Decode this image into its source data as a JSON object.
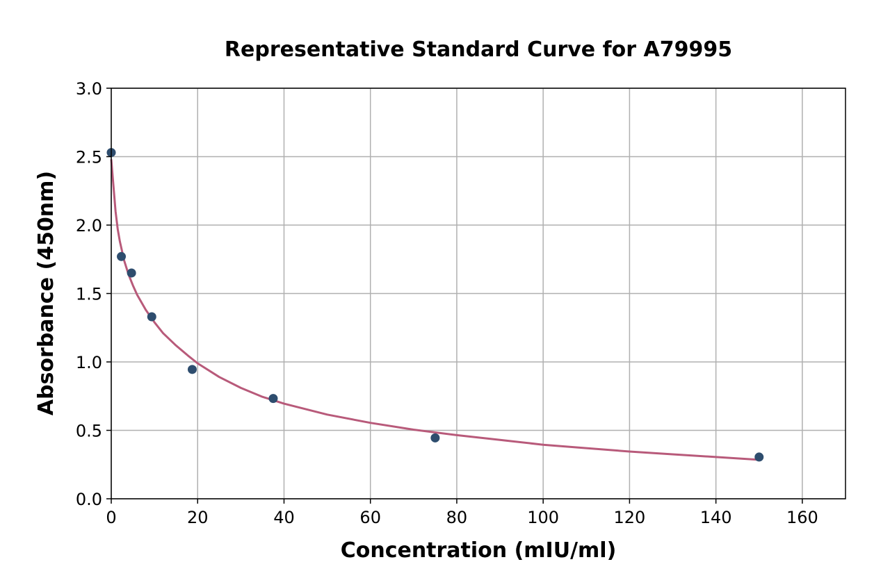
{
  "chart_data": {
    "type": "scatter",
    "title": "Representative Standard Curve for A79995",
    "xlabel": "Concentration (mIU/ml)",
    "ylabel": "Absorbance (450nm)",
    "xlim": [
      0,
      170
    ],
    "ylim": [
      0,
      3.0
    ],
    "x_ticks": [
      0,
      20,
      40,
      60,
      80,
      100,
      120,
      140,
      160
    ],
    "y_ticks": [
      0.0,
      0.5,
      1.0,
      1.5,
      2.0,
      2.5,
      3.0
    ],
    "x_tick_labels": [
      "0",
      "20",
      "40",
      "60",
      "80",
      "100",
      "120",
      "140",
      "160"
    ],
    "y_tick_labels": [
      "0.0",
      "0.5",
      "1.0",
      "1.5",
      "2.0",
      "2.5",
      "3.0"
    ],
    "grid": true,
    "points": {
      "x": [
        0,
        2.34,
        4.69,
        9.38,
        18.75,
        37.5,
        75,
        150
      ],
      "y": [
        2.53,
        1.77,
        1.65,
        1.33,
        0.945,
        0.733,
        0.445,
        0.305
      ],
      "color": "#2e4d6e"
    },
    "fit_curve": {
      "x": [
        0,
        1,
        1.5,
        2,
        3,
        4,
        5,
        6,
        8,
        10,
        12,
        15,
        18,
        20,
        25,
        30,
        35,
        40,
        50,
        60,
        70,
        80,
        90,
        100,
        110,
        120,
        130,
        140,
        150
      ],
      "y": [
        2.48,
        2.1,
        1.97,
        1.88,
        1.74,
        1.64,
        1.56,
        1.49,
        1.38,
        1.29,
        1.21,
        1.12,
        1.04,
        0.99,
        0.89,
        0.81,
        0.745,
        0.695,
        0.615,
        0.555,
        0.505,
        0.465,
        0.43,
        0.395,
        0.37,
        0.345,
        0.325,
        0.305,
        0.285
      ],
      "color": "#b85a7a"
    }
  }
}
